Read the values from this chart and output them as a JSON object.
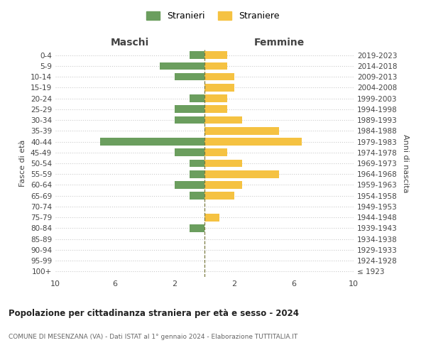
{
  "age_groups": [
    "100+",
    "95-99",
    "90-94",
    "85-89",
    "80-84",
    "75-79",
    "70-74",
    "65-69",
    "60-64",
    "55-59",
    "50-54",
    "45-49",
    "40-44",
    "35-39",
    "30-34",
    "25-29",
    "20-24",
    "15-19",
    "10-14",
    "5-9",
    "0-4"
  ],
  "birth_years": [
    "≤ 1923",
    "1924-1928",
    "1929-1933",
    "1934-1938",
    "1939-1943",
    "1944-1948",
    "1949-1953",
    "1954-1958",
    "1959-1963",
    "1964-1968",
    "1969-1973",
    "1974-1978",
    "1979-1983",
    "1984-1988",
    "1989-1993",
    "1994-1998",
    "1999-2003",
    "2004-2008",
    "2009-2013",
    "2014-2018",
    "2019-2023"
  ],
  "maschi": [
    0,
    0,
    0,
    0,
    1,
    0,
    0,
    1,
    2,
    1,
    1,
    2,
    7,
    0,
    2,
    2,
    1,
    0,
    2,
    3,
    1
  ],
  "femmine": [
    0,
    0,
    0,
    0,
    0,
    1,
    0,
    2,
    2.5,
    5,
    2.5,
    1.5,
    6.5,
    5,
    2.5,
    1.5,
    1.5,
    2,
    2,
    1.5,
    1.5
  ],
  "maschi_color": "#6b9e5e",
  "femmine_color": "#f5c242",
  "center_line_color": "#7a7a40",
  "title": "Popolazione per cittadinanza straniera per età e sesso - 2024",
  "subtitle": "COMUNE DI MESENZANA (VA) - Dati ISTAT al 1° gennaio 2024 - Elaborazione TUTTITALIA.IT",
  "xlabel_left": "Maschi",
  "xlabel_right": "Femmine",
  "ylabel_left": "Fasce di età",
  "ylabel_right": "Anni di nascita",
  "legend_maschi": "Stranieri",
  "legend_femmine": "Straniere",
  "xlim": 10,
  "background_color": "#ffffff",
  "grid_color": "#cccccc",
  "text_color": "#444444"
}
